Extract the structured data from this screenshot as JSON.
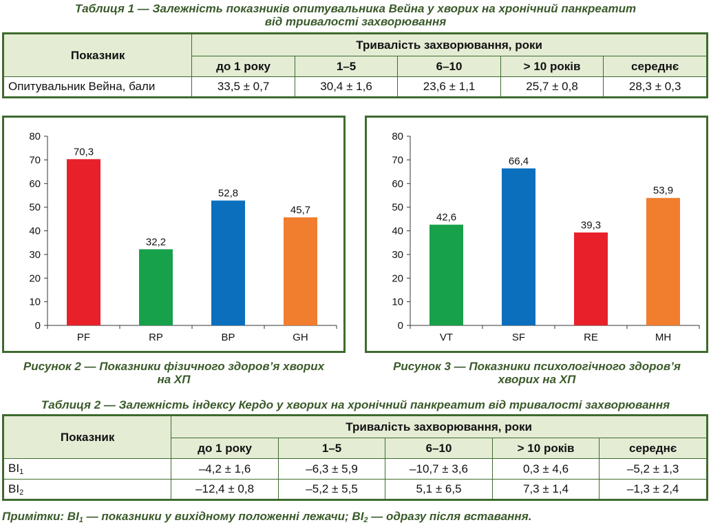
{
  "table1": {
    "caption_line1": "Таблиця 1 — Залежність показників опитувальника Вейна у хворих на хронічний панкреатит",
    "caption_line2": "від тривалості захворювання",
    "col_indicator": "Показник",
    "col_group": "Тривалість захворювання, роки",
    "subcols": [
      "до 1 року",
      "1–5",
      "6–10",
      "> 10 років",
      "середнє"
    ],
    "rows": [
      {
        "label": "Опитувальник Вейна, бали",
        "values": [
          "33,5 ± 0,7",
          "30,4 ± 1,6",
          "23,6 ± 1,1",
          "25,7 ± 0,8",
          "28,3 ± 0,3"
        ]
      }
    ]
  },
  "figure2": {
    "caption_line1": "Рисунок 2 — Показники фізичного здоров’я хворих",
    "caption_line2": "на ХП"
  },
  "figure3": {
    "caption_line1": "Рисунок 3 — Показники психологічного здоров’я",
    "caption_line2": "хворих на ХП"
  },
  "chart_data": [
    {
      "type": "bar",
      "categories": [
        "PF",
        "RP",
        "BP",
        "GH"
      ],
      "values": [
        70.3,
        32.2,
        52.8,
        45.7
      ],
      "value_labels": [
        "70,3",
        "32,2",
        "52,8",
        "45,7"
      ],
      "colors": [
        "#e8202a",
        "#17a14a",
        "#0b6fbd",
        "#f17d2f"
      ],
      "ylim": [
        0,
        80
      ],
      "yticks": [
        0,
        10,
        20,
        30,
        40,
        50,
        60,
        70,
        80
      ],
      "title": "",
      "xlabel": "",
      "ylabel": "",
      "grid": false,
      "legend": "none"
    },
    {
      "type": "bar",
      "categories": [
        "VT",
        "SF",
        "RE",
        "MH"
      ],
      "values": [
        42.6,
        66.4,
        39.3,
        53.9
      ],
      "value_labels": [
        "42,6",
        "66,4",
        "39,3",
        "53,9"
      ],
      "colors": [
        "#17a14a",
        "#0b6fbd",
        "#e8202a",
        "#f17d2f"
      ],
      "ylim": [
        0,
        80
      ],
      "yticks": [
        0,
        10,
        20,
        30,
        40,
        50,
        60,
        70,
        80
      ],
      "title": "",
      "xlabel": "",
      "ylabel": "",
      "grid": false,
      "legend": "none"
    }
  ],
  "table2": {
    "caption": "Таблиця 2 — Залежність індексу Кердо у хворих на хронічний панкреатит від тривалості захворювання",
    "col_indicator": "Показник",
    "col_group": "Тривалість захворювання, роки",
    "subcols": [
      "до 1 року",
      "1–5",
      "6–10",
      "> 10 років",
      "середнє"
    ],
    "rows": [
      {
        "label": "BI",
        "label_sub": "1",
        "values": [
          "–4,2 ± 1,6",
          "–6,3 ± 5,9",
          "–10,7 ± 3,6",
          "0,3 ± 4,6",
          "–5,2 ± 1,3"
        ]
      },
      {
        "label": "BI",
        "label_sub": "2",
        "values": [
          "–12,4 ± 0,8",
          "–5,2 ± 5,5",
          "5,1 ± 6,5",
          "7,3 ± 1,4",
          "–1,3 ± 2,4"
        ]
      }
    ],
    "note": {
      "prefix": "Примітки: BI",
      "sub1": "1",
      "middle": " — показники у вихідному положенні лежачи; BI",
      "sub2": "2",
      "suffix": " — одразу після вставання."
    }
  },
  "colors": {
    "border_green": "#3d6b2e",
    "header_bg": "#e4ecd4",
    "caption_green": "#3a5a2a"
  }
}
